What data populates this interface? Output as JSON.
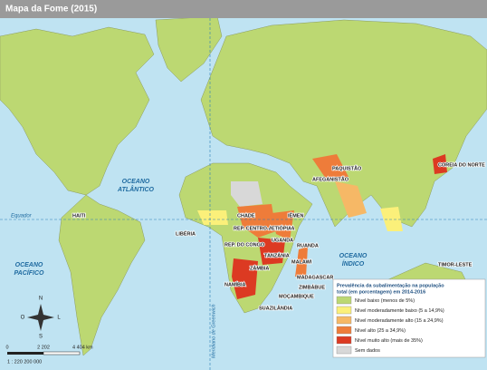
{
  "header": {
    "title": "Mapa da Fome (2015)"
  },
  "map": {
    "oceans": [
      [
        "OCEANO",
        "ATLÂNTICO"
      ],
      [
        "OCEANO",
        "PACÍFICO"
      ],
      [
        "OCEANO",
        "ÍNDICO"
      ]
    ],
    "equator": "Equador",
    "meridian": "Meridiano de Greenwich",
    "countries": [
      "HAITI",
      "LIBÉRIA",
      "CHADE",
      "REP. CENTRO-AFRICANA",
      "REP. DO CONGO",
      "ETIÓPIA",
      "UGANDA",
      "IÊMEN",
      "TANZÂNIA",
      "RUANDA",
      "MALAWI",
      "ZÂMBIA",
      "MADAGASCAR",
      "ZIMBÁBUE",
      "MOÇAMBIQUE",
      "NAMÍBIA",
      "SUAZILÂNDIA",
      "PAQUISTÃO",
      "AFEGANISTÃO",
      "COREIA DO NORTE",
      "TIMOR-LESTE"
    ]
  },
  "legend": {
    "title": [
      "Prevalência da subalimentação na população",
      "total (em porcentagem) em 2014-2016"
    ],
    "items": [
      {
        "label": "Nível baixo (menos de 5%)",
        "color": "#bcd872"
      },
      {
        "label": "Nível moderadamente baixo (5 a 14,9%)",
        "color": "#fbf07a"
      },
      {
        "label": "Nível moderadamente alto (15 a 24,9%)",
        "color": "#f6b866"
      },
      {
        "label": "Nível alto (25 a 34,9%)",
        "color": "#ee7c3a"
      },
      {
        "label": "Nível muito alto (mais de 35%)",
        "color": "#dc3a22"
      },
      {
        "label": "Sem dados",
        "color": "#d8d8d8"
      }
    ]
  },
  "scale": {
    "ticks": [
      "0",
      "2 202",
      "4 404 km"
    ],
    "ratio": "1 : 220 200 000"
  },
  "compass": {
    "n": "N",
    "s": "S",
    "e": "L",
    "w": "O"
  }
}
